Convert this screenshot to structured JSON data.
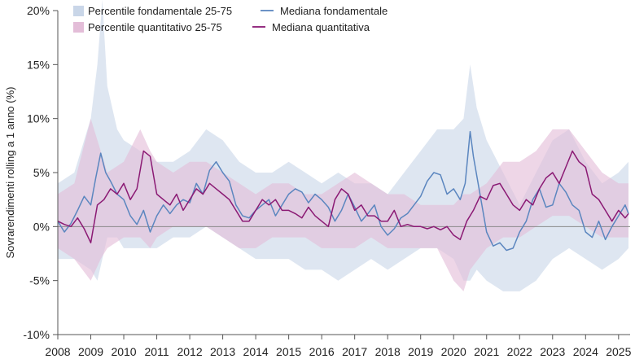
{
  "chart_data": {
    "type": "area",
    "title": "",
    "xlabel": "",
    "ylabel": "Sovrarendimenti rolling a 1 anno (%)",
    "xlim": [
      2008.0,
      2025.35
    ],
    "ylim": [
      -10,
      20
    ],
    "x_ticks": [
      "2008",
      "2009",
      "2010",
      "2011",
      "2012",
      "2013",
      "2014",
      "2015",
      "2016",
      "2017",
      "2018",
      "2019",
      "2020",
      "2021",
      "2022",
      "2023",
      "2024",
      "2025"
    ],
    "y_ticks": [
      {
        "value": 20,
        "label": "20%"
      },
      {
        "value": 15,
        "label": "15%"
      },
      {
        "value": 10,
        "label": "10%"
      },
      {
        "value": 5,
        "label": "5%"
      },
      {
        "value": 0,
        "label": "0%"
      },
      {
        "value": -5,
        "label": "-5%"
      },
      {
        "value": -10,
        "label": "-10%"
      }
    ],
    "legend": {
      "position": "top-left",
      "items": [
        {
          "label": "Percentile fondamentale 25-75",
          "kind": "band",
          "color": "#c9d6e8"
        },
        {
          "label": "Mediana fondamentale",
          "kind": "line",
          "color": "#5b86bf"
        },
        {
          "label": "Percentile quantitativo 25-75",
          "kind": "band",
          "color": "#e3bdd8"
        },
        {
          "label": "Mediana quantitativa",
          "kind": "line",
          "color": "#8b1a74"
        }
      ]
    },
    "series": [
      {
        "name": "Percentile fondamentale 25-75",
        "kind": "band",
        "color": "#c9d6e8",
        "x": [
          2008.0,
          2008.5,
          2009.0,
          2009.2,
          2009.35,
          2009.5,
          2009.8,
          2010.0,
          2010.5,
          2011.0,
          2011.5,
          2012.0,
          2012.5,
          2013.0,
          2013.5,
          2014.0,
          2014.5,
          2015.0,
          2015.5,
          2016.0,
          2016.5,
          2017.0,
          2017.5,
          2018.0,
          2018.5,
          2019.0,
          2019.5,
          2020.0,
          2020.3,
          2020.5,
          2020.7,
          2021.0,
          2021.5,
          2022.0,
          2022.5,
          2023.0,
          2023.5,
          2024.0,
          2024.5,
          2025.0,
          2025.3
        ],
        "upper": [
          4,
          5,
          10,
          15,
          21,
          13,
          9,
          8,
          7,
          6,
          6,
          7,
          9,
          8,
          6,
          5,
          5,
          6,
          5,
          4,
          5,
          4,
          4,
          3,
          5,
          7,
          9,
          9,
          10,
          15,
          11,
          8,
          5,
          2,
          5,
          8,
          9,
          6,
          4,
          5,
          6
        ],
        "lower": [
          -3,
          -3,
          -4,
          -5,
          -3,
          -1,
          -1,
          -2,
          -2,
          -2,
          -1,
          -1,
          0,
          -1,
          -2,
          -3,
          -3,
          -3,
          -4,
          -4,
          -5,
          -4,
          -3,
          -4,
          -3,
          -2,
          -2,
          -3,
          -5,
          -5,
          -4,
          -5,
          -6,
          -6,
          -5,
          -3,
          -2,
          -3,
          -4,
          -3,
          -2
        ]
      },
      {
        "name": "Percentile quantitativo 25-75",
        "kind": "band",
        "color": "#e3bdd8",
        "x": [
          2008.0,
          2008.5,
          2009.0,
          2009.3,
          2009.5,
          2010.0,
          2010.5,
          2010.8,
          2011.0,
          2011.5,
          2012.0,
          2012.5,
          2013.0,
          2013.5,
          2014.0,
          2014.5,
          2015.0,
          2015.5,
          2016.0,
          2016.5,
          2017.0,
          2017.5,
          2018.0,
          2018.5,
          2019.0,
          2019.5,
          2020.0,
          2020.3,
          2020.5,
          2021.0,
          2021.5,
          2022.0,
          2022.5,
          2023.0,
          2023.5,
          2024.0,
          2024.5,
          2025.0,
          2025.3
        ],
        "upper": [
          3,
          4,
          10,
          7,
          5,
          6,
          9,
          7,
          6,
          5,
          6,
          6,
          5,
          4,
          3,
          4,
          4,
          3,
          3,
          4,
          5,
          4,
          3,
          3,
          2,
          2,
          2,
          3,
          3,
          4,
          6,
          6,
          7,
          9,
          9,
          7,
          5,
          4,
          4
        ],
        "lower": [
          -2,
          -3,
          -5,
          -3,
          -2,
          -1,
          -1,
          -2,
          -1,
          0,
          0,
          0,
          -1,
          -2,
          -2,
          -1,
          -1,
          -1,
          -2,
          -2,
          -2,
          -1,
          -2,
          -2,
          -2,
          -2,
          -5,
          -6,
          -4,
          -2,
          -1,
          -1,
          0,
          1,
          1,
          0,
          -1,
          -1,
          -1
        ]
      },
      {
        "name": "Mediana fondamentale",
        "kind": "line",
        "color": "#5b86bf",
        "x": [
          2008.0,
          2008.2,
          2008.4,
          2008.6,
          2008.8,
          2009.0,
          2009.15,
          2009.3,
          2009.45,
          2009.6,
          2009.8,
          2010.0,
          2010.2,
          2010.4,
          2010.6,
          2010.8,
          2011.0,
          2011.2,
          2011.4,
          2011.6,
          2011.8,
          2012.0,
          2012.2,
          2012.4,
          2012.6,
          2012.8,
          2013.0,
          2013.2,
          2013.4,
          2013.6,
          2013.8,
          2014.0,
          2014.2,
          2014.4,
          2014.6,
          2014.8,
          2015.0,
          2015.2,
          2015.4,
          2015.6,
          2015.8,
          2016.0,
          2016.2,
          2016.4,
          2016.6,
          2016.8,
          2017.0,
          2017.2,
          2017.4,
          2017.6,
          2017.8,
          2018.0,
          2018.2,
          2018.4,
          2018.6,
          2018.8,
          2019.0,
          2019.2,
          2019.4,
          2019.6,
          2019.8,
          2020.0,
          2020.2,
          2020.35,
          2020.5,
          2020.6,
          2020.8,
          2021.0,
          2021.2,
          2021.4,
          2021.6,
          2021.8,
          2022.0,
          2022.2,
          2022.4,
          2022.6,
          2022.8,
          2023.0,
          2023.2,
          2023.4,
          2023.6,
          2023.8,
          2024.0,
          2024.2,
          2024.4,
          2024.6,
          2024.8,
          2025.0,
          2025.2,
          2025.3
        ],
        "y": [
          0.5,
          -0.5,
          0.3,
          1.5,
          2.8,
          2.0,
          4.5,
          6.8,
          5.0,
          4.2,
          3.0,
          2.5,
          1.0,
          0.2,
          1.5,
          -0.5,
          1.0,
          2.0,
          1.2,
          2.0,
          2.5,
          2.2,
          4.0,
          3.0,
          5.2,
          6.0,
          5.0,
          4.2,
          2.0,
          1.0,
          0.8,
          1.5,
          2.0,
          2.5,
          1.0,
          2.0,
          3.0,
          3.5,
          3.2,
          2.2,
          3.0,
          2.5,
          1.8,
          0.5,
          1.5,
          3.0,
          1.8,
          0.5,
          1.2,
          2.0,
          0.0,
          -0.8,
          -0.2,
          0.8,
          1.2,
          2.0,
          2.8,
          4.2,
          5.0,
          4.8,
          3.0,
          3.5,
          2.5,
          4.0,
          8.8,
          6.5,
          3.0,
          -0.5,
          -1.8,
          -1.5,
          -2.2,
          -2.0,
          -0.5,
          0.5,
          2.5,
          3.5,
          1.8,
          2.0,
          4.0,
          3.2,
          2.0,
          1.5,
          -0.5,
          -1.0,
          0.5,
          -1.2,
          0.0,
          1.0,
          2.0,
          1.2
        ]
      },
      {
        "name": "Mediana quantitativa",
        "kind": "line",
        "color": "#8b1a74",
        "x": [
          2008.0,
          2008.2,
          2008.4,
          2008.6,
          2008.8,
          2009.0,
          2009.2,
          2009.4,
          2009.6,
          2009.8,
          2010.0,
          2010.2,
          2010.4,
          2010.6,
          2010.8,
          2011.0,
          2011.2,
          2011.4,
          2011.6,
          2011.8,
          2012.0,
          2012.2,
          2012.4,
          2012.6,
          2012.8,
          2013.0,
          2013.2,
          2013.4,
          2013.6,
          2013.8,
          2014.0,
          2014.2,
          2014.4,
          2014.6,
          2014.8,
          2015.0,
          2015.2,
          2015.4,
          2015.6,
          2015.8,
          2016.0,
          2016.2,
          2016.4,
          2016.6,
          2016.8,
          2017.0,
          2017.2,
          2017.4,
          2017.6,
          2017.8,
          2018.0,
          2018.2,
          2018.4,
          2018.6,
          2018.8,
          2019.0,
          2019.2,
          2019.4,
          2019.6,
          2019.8,
          2020.0,
          2020.2,
          2020.4,
          2020.6,
          2020.8,
          2021.0,
          2021.2,
          2021.4,
          2021.6,
          2021.8,
          2022.0,
          2022.2,
          2022.4,
          2022.6,
          2022.8,
          2023.0,
          2023.2,
          2023.4,
          2023.6,
          2023.8,
          2024.0,
          2024.2,
          2024.4,
          2024.6,
          2024.8,
          2025.0,
          2025.2,
          2025.3
        ],
        "y": [
          0.5,
          0.2,
          0.0,
          0.8,
          -0.2,
          -1.5,
          2.0,
          2.5,
          3.5,
          3.0,
          4.0,
          2.5,
          3.5,
          7.0,
          6.5,
          3.0,
          2.5,
          2.0,
          3.0,
          1.5,
          2.5,
          3.5,
          3.0,
          4.0,
          3.5,
          3.0,
          2.5,
          1.5,
          0.5,
          0.5,
          1.5,
          2.5,
          2.0,
          2.5,
          1.5,
          1.5,
          1.2,
          0.8,
          1.8,
          1.0,
          0.5,
          0.0,
          2.5,
          3.5,
          3.0,
          1.5,
          2.0,
          1.0,
          1.0,
          0.5,
          0.5,
          1.5,
          0.0,
          0.2,
          0.0,
          0.0,
          -0.2,
          0.0,
          -0.3,
          0.0,
          -0.8,
          -1.2,
          0.5,
          1.5,
          2.8,
          2.5,
          3.8,
          4.0,
          3.0,
          2.0,
          1.5,
          2.5,
          2.0,
          3.5,
          4.5,
          5.0,
          4.0,
          5.5,
          7.0,
          6.0,
          5.5,
          3.0,
          2.5,
          1.5,
          0.5,
          1.5,
          0.8,
          1.2
        ]
      }
    ]
  }
}
